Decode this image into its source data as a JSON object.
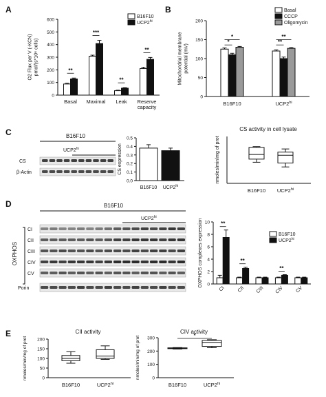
{
  "colors": {
    "white_bar": "#ffffff",
    "black_bar": "#111111",
    "grey_bar": "#9a9a9a",
    "outline": "#111111",
    "blot_dark": "#222222",
    "blot_bg": "#e8e8e8"
  },
  "panels": {
    "A": {
      "letter": "A"
    },
    "B": {
      "letter": "B"
    },
    "C": {
      "letter": "C",
      "blot_header": "B16F10",
      "blot_sub": "UCP2",
      "blot_sub_sup": "hi",
      "row_labels": [
        "CS",
        "β-Actin"
      ]
    },
    "D": {
      "letter": "D",
      "blot_header": "B16F10",
      "blot_sub": "UCP2",
      "blot_sub_sup": "hi",
      "group_label": "OXPHOS",
      "row_labels": [
        "CI",
        "CII",
        "CIII",
        "CIV",
        "CV",
        "Porin"
      ]
    },
    "E": {
      "letter": "E"
    }
  },
  "sig": {
    "two": "**",
    "three": "***",
    "one": "*"
  },
  "chart_data": [
    {
      "id": "A",
      "type": "bar",
      "ylabel_line1": "O2 Flux per V (-KCN)",
      "ylabel_line2": "pmol/(s*10⁶ cells)",
      "ylim": [
        0,
        600
      ],
      "yticks": [
        0,
        100,
        200,
        300,
        400,
        500,
        600
      ],
      "categories": [
        "Basal",
        "Maximal",
        "Leak",
        "Reserve capacity"
      ],
      "category_lines": [
        [
          "Basal"
        ],
        [
          "Maximal"
        ],
        [
          "Leak"
        ],
        [
          "Reserve",
          "capacity"
        ]
      ],
      "legend": [
        {
          "name": "B16F10",
          "sup": ""
        },
        {
          "name": "UCP2",
          "sup": "hi"
        }
      ],
      "series": [
        {
          "name": "B16F10",
          "values": [
            88,
            308,
            35,
            210
          ],
          "errors": [
            6,
            8,
            4,
            10
          ]
        },
        {
          "name": "UCP2hi",
          "values": [
            128,
            408,
            55,
            283
          ],
          "errors": [
            7,
            25,
            4,
            15
          ]
        }
      ],
      "significance": [
        "**",
        "***",
        "**",
        "**"
      ]
    },
    {
      "id": "B",
      "type": "bar",
      "ylabel_line1": "Mitochondrial membrane",
      "ylabel_line2": "potential (mV)",
      "ylim": [
        0,
        200
      ],
      "yticks": [
        0,
        50,
        100,
        150,
        200
      ],
      "categories": [
        "B16F10",
        "UCP2hi"
      ],
      "category_labels": [
        {
          "name": "B16F10",
          "sup": ""
        },
        {
          "name": "UCP2",
          "sup": "hi"
        }
      ],
      "legend": [
        {
          "name": "Basal"
        },
        {
          "name": "CCCP"
        },
        {
          "name": "Oligomycin"
        }
      ],
      "series": [
        {
          "name": "Basal",
          "values": [
            125,
            120
          ],
          "errors": [
            3,
            3
          ]
        },
        {
          "name": "CCCP",
          "values": [
            110,
            100
          ],
          "errors": [
            4,
            4
          ]
        },
        {
          "name": "Oligomycin",
          "values": [
            130,
            127
          ],
          "errors": [
            2,
            2
          ]
        }
      ],
      "significance": [
        "*",
        "*",
        "**",
        "**"
      ]
    },
    {
      "id": "C-bar",
      "type": "bar",
      "ylabel": "CS expression",
      "ylim": [
        0,
        0.5
      ],
      "yticks": [
        0.0,
        0.1,
        0.2,
        0.3,
        0.4,
        0.5
      ],
      "ytick_labels": [
        "0.0",
        "0.1",
        "0.2",
        "0.3",
        "0.4",
        "0.5"
      ],
      "categories": [
        "B16F10",
        "UCP2hi"
      ],
      "category_labels": [
        {
          "name": "B16F10",
          "sup": ""
        },
        {
          "name": "UCP2",
          "sup": "hi"
        }
      ],
      "values": [
        0.38,
        0.35
      ],
      "errors": [
        0.04,
        0.03
      ]
    },
    {
      "id": "C-box",
      "type": "box",
      "title": "CS activity in cell lysate",
      "ylabel": "nmoles/min/mg of prot",
      "categories": [
        "B16F10",
        "UCP2hi"
      ],
      "category_labels": [
        {
          "name": "B16F10",
          "sup": ""
        },
        {
          "name": "UCP2",
          "sup": "hi"
        }
      ],
      "boxes": [
        {
          "min": 335,
          "q1": 355,
          "median": 385,
          "q3": 430,
          "max": 435
        },
        {
          "min": 305,
          "q1": 330,
          "median": 380,
          "q3": 400,
          "max": 420
        }
      ]
    },
    {
      "id": "D-bar",
      "type": "bar",
      "ylabel": "OXPHOS complexes expression",
      "ylim": [
        0,
        10
      ],
      "yticks": [
        0,
        2,
        4,
        6,
        8,
        10
      ],
      "categories": [
        "CI",
        "CII",
        "CIII",
        "CIV",
        "CV"
      ],
      "legend": [
        {
          "name": "B16F10",
          "sup": ""
        },
        {
          "name": "UCP2",
          "sup": "hi"
        }
      ],
      "series": [
        {
          "name": "B16F10",
          "values": [
            1.0,
            1.0,
            1.0,
            1.0,
            1.0
          ],
          "errors": [
            0.4,
            0.1,
            0.1,
            0.1,
            0.1
          ]
        },
        {
          "name": "UCP2hi",
          "values": [
            7.5,
            2.5,
            1.0,
            1.4,
            1.0
          ],
          "errors": [
            1.2,
            0.2,
            0.1,
            0.1,
            0.1
          ]
        }
      ],
      "significance": [
        "**",
        "**",
        "",
        "**",
        ""
      ]
    },
    {
      "id": "E-CII",
      "type": "box",
      "title": "CII activity",
      "ylabel": "nmoles/min/mg of prot",
      "ylim": [
        0,
        200
      ],
      "yticks": [
        0,
        50,
        100,
        150,
        200
      ],
      "categories": [
        "B16F10",
        "UCP2hi"
      ],
      "category_labels": [
        {
          "name": "B16F10",
          "sup": ""
        },
        {
          "name": "UCP2",
          "sup": "hi"
        }
      ],
      "boxes": [
        {
          "min": 75,
          "q1": 88,
          "median": 100,
          "q3": 115,
          "max": 135
        },
        {
          "min": 95,
          "q1": 100,
          "median": 112,
          "q3": 145,
          "max": 165
        }
      ]
    },
    {
      "id": "E-CIV",
      "type": "box",
      "title": "CIV activity",
      "ylabel": "nmoles/min/mg of prot",
      "ylim": [
        0,
        300
      ],
      "yticks": [
        0,
        100,
        200,
        300
      ],
      "categories": [
        "B16F10",
        "UCP2hi"
      ],
      "category_labels": [
        {
          "name": "B16F10",
          "sup": ""
        },
        {
          "name": "UCP2",
          "sup": "hi"
        }
      ],
      "boxes": [
        {
          "min": 215,
          "q1": 218,
          "median": 220,
          "q3": 224,
          "max": 226
        },
        {
          "min": 225,
          "q1": 235,
          "median": 265,
          "q3": 280,
          "max": 285
        }
      ],
      "significance": "*"
    }
  ]
}
